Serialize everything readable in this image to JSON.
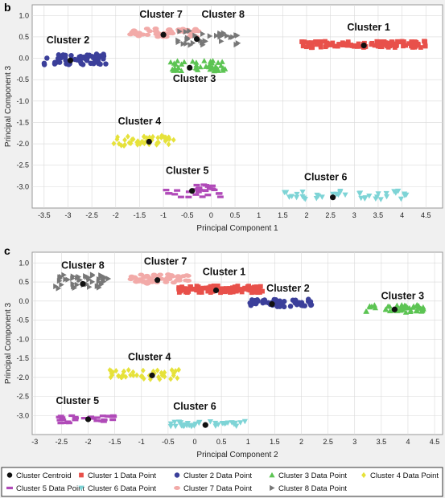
{
  "panels": [
    {
      "label": "b",
      "type": "scatter",
      "xlabel": "Principal Component 1",
      "ylabel": "Principal Component 3",
      "xlim": [
        -3.75,
        4.85
      ],
      "ylim": [
        -3.5,
        1.25
      ],
      "xticks": [
        -3.5,
        -3,
        -2.5,
        -2,
        -1.5,
        -1,
        -0.5,
        0,
        0.5,
        1,
        1.5,
        2,
        2.5,
        3,
        3.5,
        4,
        4.5
      ],
      "yticks": [
        1,
        0.5,
        0,
        -0.5,
        -1,
        -1.5,
        -2,
        -2.5,
        -3
      ],
      "clusters": [
        {
          "name": "Cluster 1",
          "centroid": [
            3.2,
            0.3
          ],
          "xrange": [
            1.9,
            4.5
          ],
          "yrange": [
            0.25,
            0.4
          ],
          "n": 120,
          "label": "Cluster 1",
          "label_at": [
            3.3,
            0.65
          ]
        },
        {
          "name": "Cluster 2",
          "centroid": [
            -2.95,
            -0.05
          ],
          "xrange": [
            -3.5,
            -2.2
          ],
          "yrange": [
            -0.15,
            0.1
          ],
          "n": 60,
          "label": "Cluster 2",
          "label_at": [
            -3.0,
            0.35
          ]
        },
        {
          "name": "Cluster 3",
          "centroid": [
            -0.45,
            -0.22
          ],
          "xrange": [
            -0.85,
            0.3
          ],
          "yrange": [
            -0.3,
            -0.05
          ],
          "n": 45,
          "label": "Cluster 3",
          "label_at": [
            -0.35,
            -0.55
          ]
        },
        {
          "name": "Cluster 4",
          "centroid": [
            -1.3,
            -1.95
          ],
          "xrange": [
            -2.1,
            -0.7
          ],
          "yrange": [
            -2.05,
            -1.8
          ],
          "n": 45,
          "label": "Cluster 4",
          "label_at": [
            -1.5,
            -1.55
          ]
        },
        {
          "name": "Cluster 5",
          "centroid": [
            -0.4,
            -3.1
          ],
          "xrange": [
            -1.0,
            0.2
          ],
          "yrange": [
            -3.25,
            -2.95
          ],
          "n": 30,
          "label": "Cluster 5",
          "label_at": [
            -0.5,
            -2.7
          ]
        },
        {
          "name": "Cluster 6",
          "centroid": [
            2.55,
            -3.25
          ],
          "xrange": [
            1.5,
            4.1
          ],
          "yrange": [
            -3.3,
            -3.1
          ],
          "n": 40,
          "label": "Cluster 6",
          "label_at": [
            2.4,
            -2.85
          ]
        },
        {
          "name": "Cluster 7",
          "centroid": [
            -1.0,
            0.55
          ],
          "xrange": [
            -1.7,
            -0.2
          ],
          "yrange": [
            0.5,
            0.7
          ],
          "n": 50,
          "label": "Cluster 7",
          "label_at": [
            -1.05,
            0.95
          ]
        },
        {
          "name": "Cluster 8",
          "centroid": [
            -0.3,
            0.45
          ],
          "xrange": [
            -0.7,
            0.6
          ],
          "yrange": [
            0.3,
            0.65
          ],
          "n": 35,
          "label": "Cluster 8",
          "label_at": [
            0.25,
            0.95
          ]
        }
      ]
    },
    {
      "label": "c",
      "type": "scatter",
      "xlabel": "Principal Component 2",
      "ylabel": "Principal Component 3",
      "xlim": [
        -3.05,
        4.65
      ],
      "ylim": [
        -3.5,
        1.28
      ],
      "xticks": [
        -3,
        -2.5,
        -2,
        -1.5,
        -1,
        -0.5,
        0,
        0.5,
        1,
        1.5,
        2,
        2.5,
        3,
        3.5,
        4,
        4.5
      ],
      "yticks": [
        1,
        0.5,
        0,
        -0.5,
        -1,
        -1.5,
        -2,
        -2.5,
        -3
      ],
      "clusters": [
        {
          "name": "Cluster 1",
          "centroid": [
            0.4,
            0.28
          ],
          "xrange": [
            -0.3,
            1.3
          ],
          "yrange": [
            0.22,
            0.4
          ],
          "n": 110,
          "label": "Cluster 1",
          "label_at": [
            0.55,
            0.68
          ]
        },
        {
          "name": "Cluster 2",
          "centroid": [
            1.45,
            -0.08
          ],
          "xrange": [
            1.0,
            2.2
          ],
          "yrange": [
            -0.15,
            0.05
          ],
          "n": 55,
          "label": "Cluster 2",
          "label_at": [
            1.75,
            0.25
          ]
        },
        {
          "name": "Cluster 3",
          "centroid": [
            3.75,
            -0.22
          ],
          "xrange": [
            3.2,
            4.4
          ],
          "yrange": [
            -0.3,
            -0.1
          ],
          "n": 45,
          "label": "Cluster 3",
          "label_at": [
            3.9,
            0.05
          ]
        },
        {
          "name": "Cluster 4",
          "centroid": [
            -0.8,
            -1.95
          ],
          "xrange": [
            -1.6,
            -0.3
          ],
          "yrange": [
            -2.05,
            -1.8
          ],
          "n": 45,
          "label": "Cluster 4",
          "label_at": [
            -0.85,
            -1.55
          ]
        },
        {
          "name": "Cluster 5",
          "centroid": [
            -2.0,
            -3.1
          ],
          "xrange": [
            -2.6,
            -1.5
          ],
          "yrange": [
            -3.2,
            -3.0
          ],
          "n": 30,
          "label": "Cluster 5",
          "label_at": [
            -2.2,
            -2.7
          ]
        },
        {
          "name": "Cluster 6",
          "centroid": [
            0.2,
            -3.25
          ],
          "xrange": [
            -0.5,
            1.0
          ],
          "yrange": [
            -3.3,
            -3.15
          ],
          "n": 35,
          "label": "Cluster 6",
          "label_at": [
            0.0,
            -2.85
          ]
        },
        {
          "name": "Cluster 7",
          "centroid": [
            -0.7,
            0.55
          ],
          "xrange": [
            -1.2,
            -0.1
          ],
          "yrange": [
            0.45,
            0.7
          ],
          "n": 50,
          "label": "Cluster 7",
          "label_at": [
            -0.55,
            0.95
          ]
        },
        {
          "name": "Cluster 8",
          "centroid": [
            -2.1,
            0.45
          ],
          "xrange": [
            -2.7,
            -1.6
          ],
          "yrange": [
            0.3,
            0.7
          ],
          "n": 45,
          "label": "Cluster 8",
          "label_at": [
            -2.1,
            0.85
          ]
        }
      ]
    }
  ],
  "legend": [
    {
      "label": "Cluster Centroid",
      "shape": "circle",
      "color": "#111111"
    },
    {
      "label": "Cluster 1 Data Point",
      "shape": "square",
      "color": "#e8504a"
    },
    {
      "label": "Cluster 2 Data Point",
      "shape": "circle",
      "color": "#3b3f9a"
    },
    {
      "label": "Cluster 3 Data Point",
      "shape": "triangle-up",
      "color": "#5cc453"
    },
    {
      "label": "Cluster 4 Data Point",
      "shape": "diamond",
      "color": "#e6e23a"
    },
    {
      "label": "Cluster 5 Data Point",
      "shape": "dash",
      "color": "#b04ab8"
    },
    {
      "label": "Cluster 6 Data Point",
      "shape": "triangle-down",
      "color": "#7ed4d6"
    },
    {
      "label": "Cluster 7 Data Point",
      "shape": "ellipse",
      "color": "#f2aaa8"
    },
    {
      "label": "Cluster 8 Data Point",
      "shape": "triangle-right",
      "color": "#777777"
    }
  ]
}
